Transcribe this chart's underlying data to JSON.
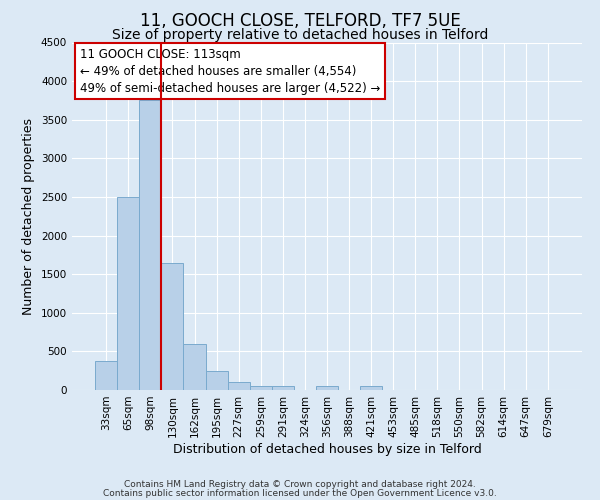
{
  "title1": "11, GOOCH CLOSE, TELFORD, TF7 5UE",
  "title2": "Size of property relative to detached houses in Telford",
  "xlabel": "Distribution of detached houses by size in Telford",
  "ylabel": "Number of detached properties",
  "categories": [
    "33sqm",
    "65sqm",
    "98sqm",
    "130sqm",
    "162sqm",
    "195sqm",
    "227sqm",
    "259sqm",
    "291sqm",
    "324sqm",
    "356sqm",
    "388sqm",
    "421sqm",
    "453sqm",
    "485sqm",
    "518sqm",
    "550sqm",
    "582sqm",
    "614sqm",
    "647sqm",
    "679sqm"
  ],
  "values": [
    375,
    2500,
    3750,
    1650,
    600,
    250,
    100,
    55,
    50,
    0,
    50,
    0,
    50,
    0,
    0,
    0,
    0,
    0,
    0,
    0,
    0
  ],
  "bar_color": "#b8d0e8",
  "bar_edge_color": "#7aaace",
  "vline_x_index": 2.5,
  "vline_color": "#cc0000",
  "annotation_line1": "11 GOOCH CLOSE: 113sqm",
  "annotation_line2": "← 49% of detached houses are smaller (4,554)",
  "annotation_line3": "49% of semi-detached houses are larger (4,522) →",
  "annotation_box_color": "#ffffff",
  "annotation_box_edge": "#cc0000",
  "ylim": [
    0,
    4500
  ],
  "yticks": [
    0,
    500,
    1000,
    1500,
    2000,
    2500,
    3000,
    3500,
    4000,
    4500
  ],
  "footer1": "Contains HM Land Registry data © Crown copyright and database right 2024.",
  "footer2": "Contains public sector information licensed under the Open Government Licence v3.0.",
  "bg_color": "#dce9f5",
  "plot_bg_color": "#dce9f5",
  "title_fontsize": 12,
  "subtitle_fontsize": 10,
  "axis_label_fontsize": 9,
  "tick_fontsize": 7.5,
  "annotation_fontsize": 8.5,
  "footer_fontsize": 6.5
}
